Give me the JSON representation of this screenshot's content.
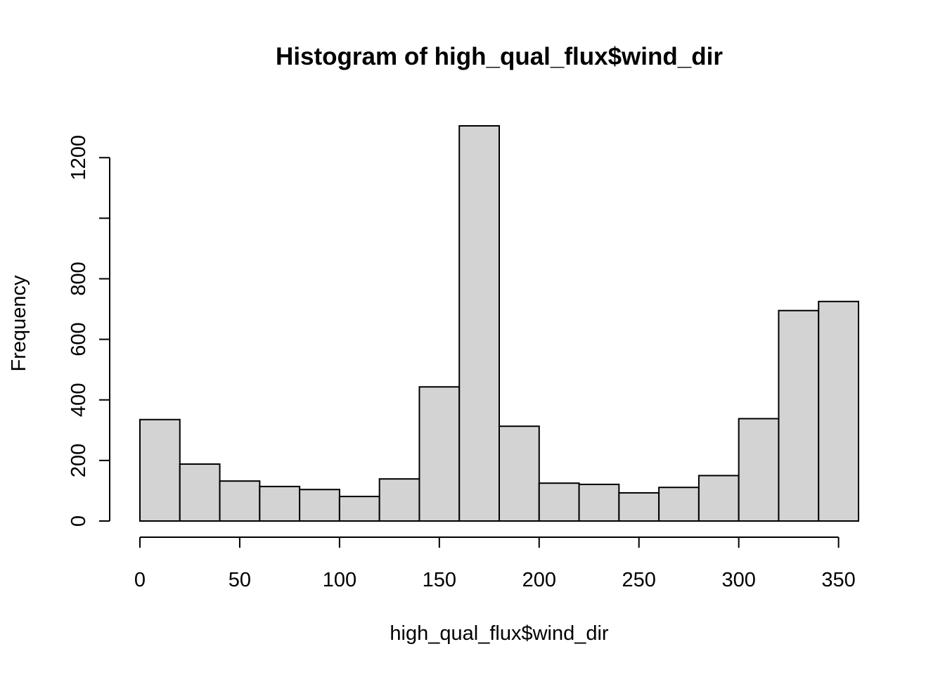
{
  "chart_data": {
    "type": "bar",
    "title": "Histogram of high_qual_flux$wind_dir",
    "xlabel": "high_qual_flux$wind_dir",
    "ylabel": "Frequency",
    "bin_edges": [
      0,
      20,
      40,
      60,
      80,
      100,
      120,
      140,
      160,
      180,
      200,
      220,
      240,
      260,
      280,
      300,
      320,
      340,
      360
    ],
    "values": [
      335,
      188,
      132,
      114,
      104,
      81,
      139,
      443,
      1305,
      313,
      125,
      121,
      93,
      111,
      150,
      338,
      695,
      725
    ],
    "xlim": [
      0,
      360
    ],
    "ylim": [
      0,
      1305
    ],
    "x_ticks": [
      0,
      50,
      100,
      150,
      200,
      250,
      300,
      350
    ],
    "x_tick_labels": [
      "0",
      "50",
      "100",
      "150",
      "200",
      "250",
      "300",
      "350"
    ],
    "y_ticks": [
      0,
      200,
      400,
      600,
      800,
      1000,
      1200
    ],
    "y_tick_labels": [
      "0",
      "200",
      "400",
      "600",
      "800",
      "",
      "1200"
    ],
    "bar_color": "#d3d3d3",
    "grid": false,
    "legend": "none"
  }
}
